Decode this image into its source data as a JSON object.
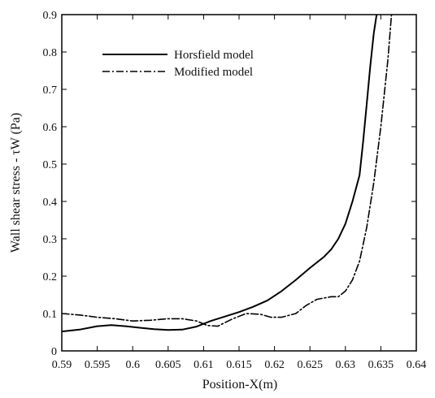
{
  "chart_data": {
    "type": "line",
    "xlabel": "Position-X(m)",
    "ylabel": "Wall shear stress - τW (Pa)",
    "xlim": [
      0.59,
      0.64
    ],
    "ylim": [
      0,
      0.9
    ],
    "xticks": [
      "0.59",
      "0.595",
      "0.6",
      "0.605",
      "0.61",
      "0.615",
      "0.62",
      "0.625",
      "0.63",
      "0.635",
      "0.64"
    ],
    "yticks": [
      "0",
      "0.1",
      "0.2",
      "0.3",
      "0.4",
      "0.5",
      "0.6",
      "0.7",
      "0.8",
      "0.9"
    ],
    "legend_position": "top-left",
    "grid": false,
    "series": [
      {
        "name": "Horsfield model",
        "line_style": "solid",
        "color": "#000000",
        "points": [
          [
            0.59,
            0.052
          ],
          [
            0.5925,
            0.057
          ],
          [
            0.595,
            0.066
          ],
          [
            0.597,
            0.069
          ],
          [
            0.599,
            0.066
          ],
          [
            0.601,
            0.062
          ],
          [
            0.603,
            0.058
          ],
          [
            0.605,
            0.056
          ],
          [
            0.607,
            0.057
          ],
          [
            0.609,
            0.065
          ],
          [
            0.611,
            0.08
          ],
          [
            0.613,
            0.092
          ],
          [
            0.615,
            0.104
          ],
          [
            0.617,
            0.118
          ],
          [
            0.619,
            0.135
          ],
          [
            0.621,
            0.16
          ],
          [
            0.623,
            0.19
          ],
          [
            0.625,
            0.222
          ],
          [
            0.627,
            0.252
          ],
          [
            0.628,
            0.272
          ],
          [
            0.629,
            0.3
          ],
          [
            0.63,
            0.34
          ],
          [
            0.631,
            0.4
          ],
          [
            0.632,
            0.47
          ],
          [
            0.6325,
            0.56
          ],
          [
            0.633,
            0.66
          ],
          [
            0.6335,
            0.76
          ],
          [
            0.634,
            0.85
          ],
          [
            0.6344,
            0.9
          ]
        ]
      },
      {
        "name": "Modified model",
        "line_style": "dash-dot",
        "color": "#000000",
        "points": [
          [
            0.59,
            0.1
          ],
          [
            0.5925,
            0.096
          ],
          [
            0.595,
            0.09
          ],
          [
            0.5975,
            0.086
          ],
          [
            0.6,
            0.08
          ],
          [
            0.6025,
            0.082
          ],
          [
            0.605,
            0.086
          ],
          [
            0.607,
            0.086
          ],
          [
            0.609,
            0.08
          ],
          [
            0.6105,
            0.068
          ],
          [
            0.612,
            0.066
          ],
          [
            0.614,
            0.085
          ],
          [
            0.616,
            0.1
          ],
          [
            0.618,
            0.098
          ],
          [
            0.6195,
            0.09
          ],
          [
            0.621,
            0.09
          ],
          [
            0.623,
            0.1
          ],
          [
            0.6245,
            0.122
          ],
          [
            0.626,
            0.138
          ],
          [
            0.628,
            0.145
          ],
          [
            0.629,
            0.145
          ],
          [
            0.63,
            0.16
          ],
          [
            0.631,
            0.19
          ],
          [
            0.632,
            0.24
          ],
          [
            0.633,
            0.33
          ],
          [
            0.634,
            0.45
          ],
          [
            0.635,
            0.6
          ],
          [
            0.636,
            0.78
          ],
          [
            0.6365,
            0.9
          ]
        ]
      }
    ]
  }
}
